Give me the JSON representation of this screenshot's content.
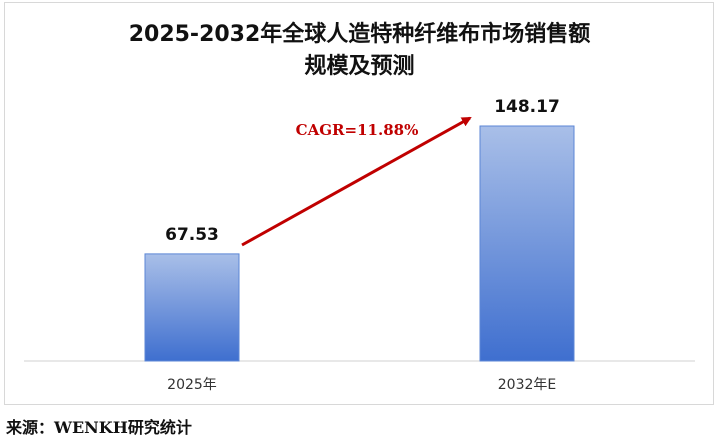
{
  "chart_data": {
    "type": "bar",
    "title": [
      "2025-2032年全球人造特种纤维布市场销售额",
      "规模及预测"
    ],
    "categories": [
      "2025年",
      "2032年E"
    ],
    "values": [
      67.53,
      148.17
    ],
    "data_labels": [
      "67.53",
      "148.17"
    ],
    "annotation": "CAGR=11.88%",
    "ylim": [
      0,
      148.17
    ],
    "grid": false,
    "bar_color": "#4472c4",
    "annotation_color": "#c00000"
  },
  "source": "来源：WENKH研究统计"
}
